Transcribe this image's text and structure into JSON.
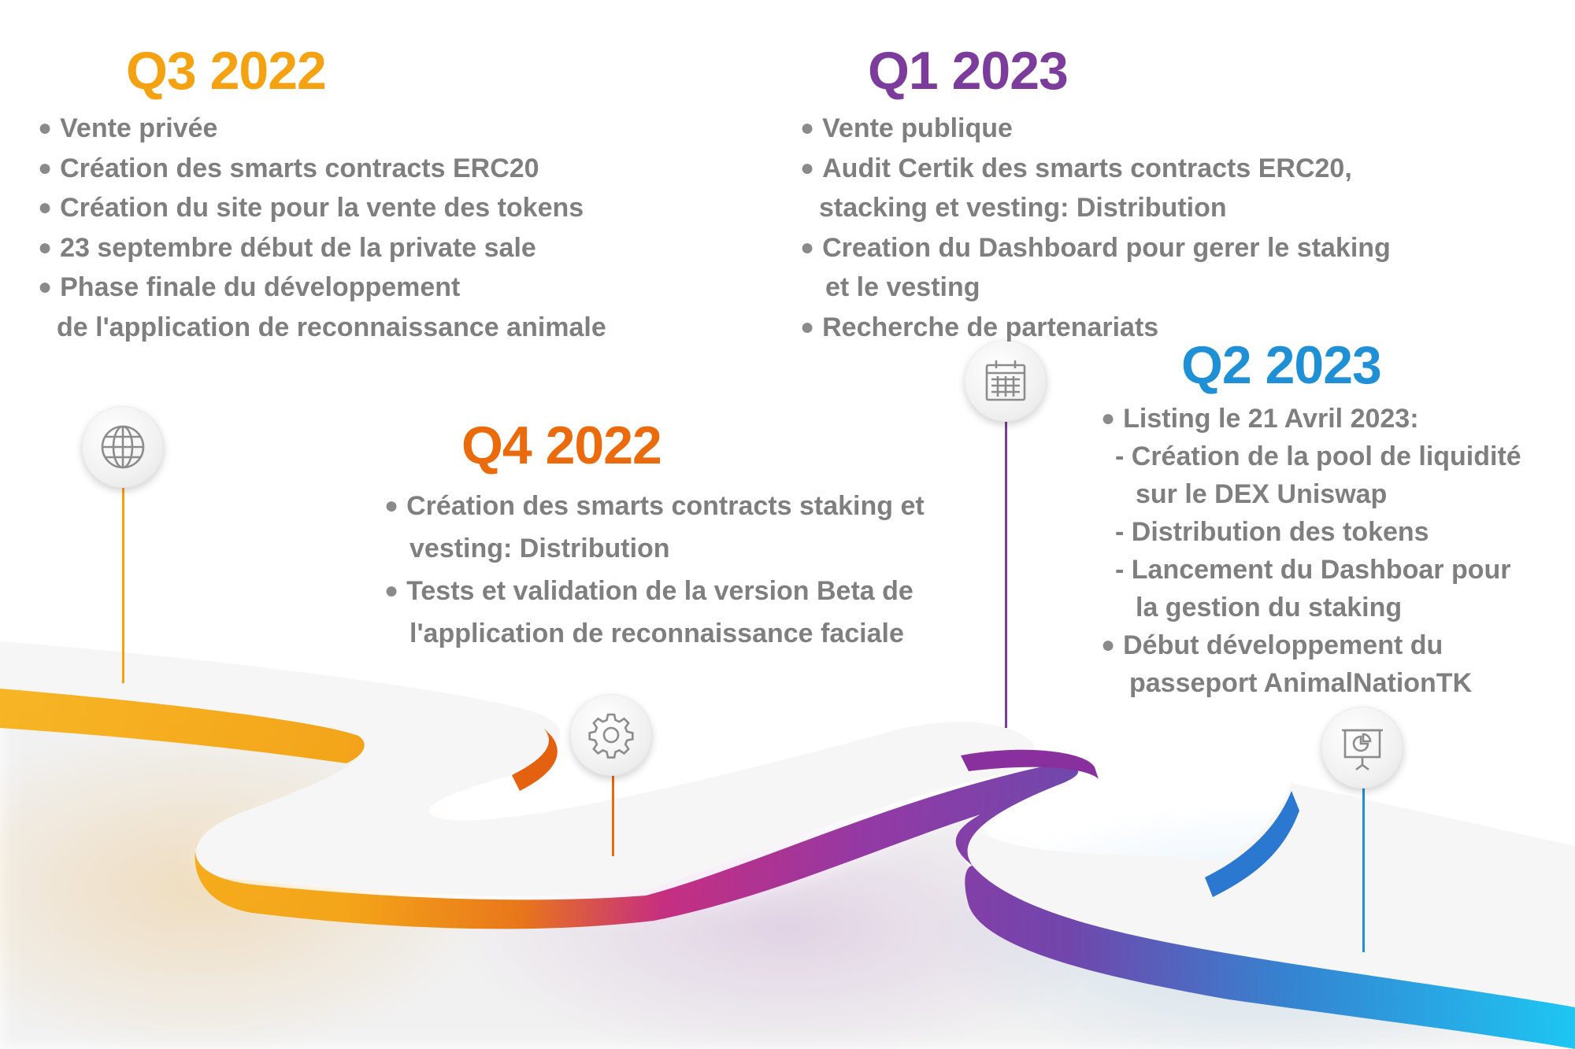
{
  "colors": {
    "q3_2022": "#f5a212",
    "q4_2022": "#ea6a0c",
    "q1_2023": "#7b3c9b",
    "q2_2023": "#1f8fd6",
    "text": "#7f7f7f"
  },
  "phases": {
    "q3_2022": {
      "title": "Q3 2022",
      "icon": "globe-icon",
      "items": [
        "Vente privée",
        "Création des smarts contracts ERC20",
        "Création du site pour la vente des tokens",
        "23 septembre début de la private sale",
        "Phase finale du développement",
        "de l'application de reconnaissance animale"
      ]
    },
    "q4_2022": {
      "title": "Q4 2022",
      "icon": "gear-icon",
      "items": [
        "Création des smarts contracts staking et",
        "vesting: Distribution",
        "Tests et validation de la version Beta de",
        "l'application de reconnaissance faciale"
      ]
    },
    "q1_2023": {
      "title": "Q1 2023",
      "icon": "calendar-icon",
      "items": [
        "Vente publique",
        "Audit Certik des smarts contracts ERC20,",
        "stacking et vesting: Distribution",
        "Creation du Dashboard pour gerer le staking",
        "et le vesting",
        "Recherche de partenariats"
      ]
    },
    "q2_2023": {
      "title": "Q2 2023",
      "icon": "presentation-chart-icon",
      "items": [
        "Listing le 21 Avril 2023:",
        "- Création de la pool de liquidité",
        "sur le DEX Uniswap",
        "- Distribution des tokens",
        "- Lancement du Dashboar pour",
        "la gestion du staking",
        "Début développement du",
        "passeport AnimalNationTK"
      ]
    }
  }
}
